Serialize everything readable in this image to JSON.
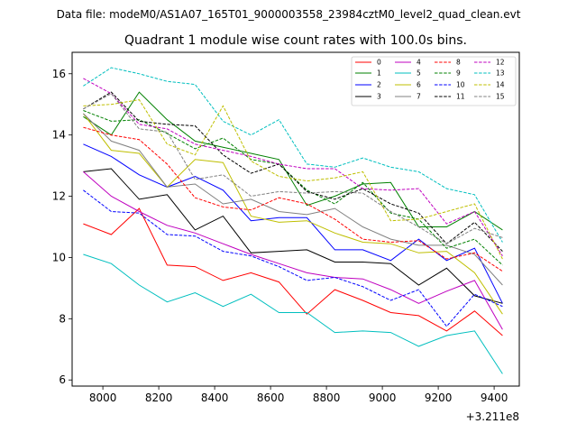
{
  "suptitle": "Data file: modeM0/AS1A07_165T01_9000003558_23984cztM0_level2_quad_clean.evt",
  "chart_data": {
    "type": "line",
    "title": "Quadrant 1 module wise count rates with 100.0s bins.",
    "xlabel": "",
    "ylabel": "",
    "x_offset_label": "+3.211e8",
    "xlim": [
      7890,
      9490
    ],
    "ylim": [
      5.8,
      16.7
    ],
    "xticks": [
      8000,
      8200,
      8400,
      8600,
      8800,
      9000,
      9200,
      9400
    ],
    "xtick_labels": [
      "8000",
      "8200",
      "8400",
      "8600",
      "8800",
      "9000",
      "9200",
      "9400"
    ],
    "yticks": [
      6,
      8,
      10,
      12,
      14,
      16
    ],
    "ytick_labels": [
      "6",
      "8",
      "10",
      "12",
      "14",
      "16"
    ],
    "grid": false,
    "legend_position": "top-right",
    "x": [
      7930,
      8030,
      8130,
      8230,
      8330,
      8430,
      8530,
      8630,
      8730,
      8830,
      8930,
      9030,
      9130,
      9230,
      9330,
      9430
    ],
    "series": [
      {
        "name": "0",
        "color": "#ff0000",
        "dash": "solid",
        "values": [
          11.1,
          10.75,
          11.6,
          9.75,
          9.7,
          9.25,
          9.5,
          9.2,
          8.15,
          8.95,
          8.6,
          8.2,
          8.1,
          7.6,
          8.25,
          7.45
        ]
      },
      {
        "name": "1",
        "color": "#008000",
        "dash": "solid",
        "values": [
          14.6,
          14.0,
          15.4,
          14.5,
          13.8,
          13.6,
          13.4,
          13.2,
          11.7,
          12.0,
          12.4,
          12.45,
          11.0,
          11.0,
          11.5,
          10.9
        ]
      },
      {
        "name": "2",
        "color": "#0000ff",
        "dash": "solid",
        "values": [
          13.7,
          13.3,
          12.7,
          12.3,
          12.65,
          12.2,
          11.2,
          11.3,
          11.3,
          10.25,
          10.25,
          9.9,
          10.6,
          9.9,
          10.3,
          8.5
        ]
      },
      {
        "name": "3",
        "color": "#000000",
        "dash": "solid",
        "values": [
          12.8,
          12.9,
          11.9,
          12.05,
          10.9,
          11.35,
          10.15,
          10.2,
          10.25,
          9.85,
          9.85,
          9.8,
          9.1,
          9.65,
          8.75,
          8.5
        ]
      },
      {
        "name": "4",
        "color": "#bf00bf",
        "dash": "solid",
        "values": [
          12.8,
          12.0,
          11.5,
          11.05,
          10.8,
          10.45,
          10.1,
          9.8,
          9.5,
          9.35,
          9.3,
          8.95,
          8.5,
          8.9,
          9.25,
          7.65
        ]
      },
      {
        "name": "5",
        "color": "#00bfbf",
        "dash": "solid",
        "values": [
          10.1,
          9.8,
          9.1,
          8.55,
          8.85,
          8.4,
          8.8,
          8.2,
          8.2,
          7.55,
          7.6,
          7.55,
          7.1,
          7.45,
          7.6,
          6.2
        ]
      },
      {
        "name": "6",
        "color": "#bfbf00",
        "dash": "solid",
        "values": [
          14.7,
          13.5,
          13.4,
          12.3,
          13.2,
          13.1,
          11.35,
          11.15,
          11.2,
          10.8,
          10.5,
          10.45,
          10.15,
          10.2,
          9.5,
          8.15
        ]
      },
      {
        "name": "7",
        "color": "#808080",
        "dash": "solid",
        "values": [
          14.7,
          13.8,
          13.5,
          12.3,
          12.4,
          11.75,
          11.9,
          11.5,
          11.4,
          11.6,
          11.0,
          10.6,
          10.4,
          10.4,
          10.1,
          9.1
        ]
      },
      {
        "name": "8",
        "color": "#ff0000",
        "dash": "dashed",
        "values": [
          14.25,
          14.0,
          13.85,
          13.05,
          11.95,
          11.65,
          11.55,
          11.95,
          11.75,
          11.25,
          10.6,
          10.5,
          10.55,
          9.95,
          10.15,
          9.55
        ]
      },
      {
        "name": "9",
        "color": "#008000",
        "dash": "dashed",
        "values": [
          14.8,
          14.45,
          14.5,
          14.05,
          13.55,
          13.9,
          13.2,
          13.05,
          12.2,
          11.75,
          12.45,
          11.45,
          11.25,
          10.3,
          10.6,
          9.75
        ]
      },
      {
        "name": "10",
        "color": "#0000ff",
        "dash": "dashed",
        "values": [
          12.2,
          11.5,
          11.45,
          10.75,
          10.7,
          10.2,
          10.05,
          9.7,
          9.25,
          9.35,
          9.05,
          8.6,
          8.95,
          7.75,
          8.8,
          8.4
        ]
      },
      {
        "name": "11",
        "color": "#000000",
        "dash": "dashed",
        "values": [
          14.85,
          15.4,
          14.45,
          14.35,
          14.3,
          13.35,
          12.75,
          13.05,
          12.15,
          11.9,
          12.25,
          11.75,
          11.45,
          10.45,
          11.15,
          10.2
        ]
      },
      {
        "name": "12",
        "color": "#bf00bf",
        "dash": "dashed",
        "values": [
          15.85,
          15.35,
          14.35,
          14.2,
          13.7,
          13.5,
          13.3,
          13.05,
          12.9,
          12.9,
          12.25,
          12.2,
          12.25,
          11.1,
          11.5,
          10.05
        ]
      },
      {
        "name": "13",
        "color": "#00bfbf",
        "dash": "dashed",
        "values": [
          15.6,
          16.2,
          16.0,
          15.75,
          15.65,
          14.45,
          14.0,
          14.5,
          13.05,
          12.95,
          13.25,
          12.95,
          12.8,
          12.25,
          12.05,
          10.5
        ]
      },
      {
        "name": "14",
        "color": "#bfbf00",
        "dash": "dashed",
        "values": [
          14.95,
          15.0,
          15.15,
          13.7,
          13.35,
          14.95,
          13.15,
          12.65,
          12.5,
          12.6,
          12.8,
          11.2,
          11.25,
          11.5,
          11.75,
          9.95
        ]
      },
      {
        "name": "15",
        "color": "#808080",
        "dash": "dashed",
        "values": [
          14.85,
          15.35,
          14.2,
          14.1,
          12.55,
          12.7,
          12.0,
          12.15,
          12.1,
          12.15,
          12.1,
          11.5,
          11.0,
          10.45,
          10.95,
          10.65
        ]
      }
    ]
  }
}
